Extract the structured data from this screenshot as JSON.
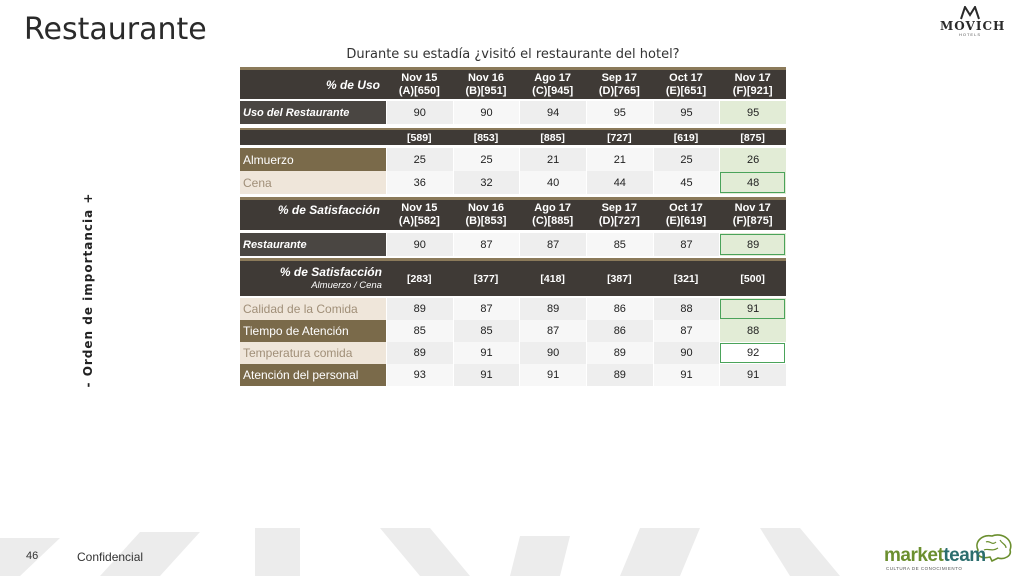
{
  "title": "Restaurante",
  "logo": {
    "brand": "MOVICH",
    "sub": "HOTELS"
  },
  "question": "Durante su estadía ¿visitó el restaurante del hotel?",
  "side_label": "-   Orden de importancia   +",
  "usage": {
    "header_label": "% de Uso",
    "columns": [
      {
        "l1": "Nov 15",
        "l2": "(A)[650]"
      },
      {
        "l1": "Nov 16",
        "l2": "(B)[951]"
      },
      {
        "l1": "Ago 17",
        "l2": "(C)[945]"
      },
      {
        "l1": "Sep 17",
        "l2": "(D)[765]"
      },
      {
        "l1": "Oct 17",
        "l2": "(E)[651]"
      },
      {
        "l1": "Nov 17",
        "l2": "(F)[921]"
      }
    ],
    "row_label": "Uso del Restaurante",
    "row_values": [
      "90",
      "90",
      "94",
      "95",
      "95",
      "95"
    ],
    "bases": [
      "[589]",
      "[853]",
      "[885]",
      "[727]",
      "[619]",
      "[875]"
    ],
    "meals": [
      {
        "label": "Almuerzo",
        "values": [
          "25",
          "25",
          "21",
          "21",
          "25",
          "26"
        ]
      },
      {
        "label": "Cena",
        "values": [
          "36",
          "32",
          "40",
          "44",
          "45",
          "48"
        ]
      }
    ]
  },
  "satisfaction": {
    "header_label": "% de Satisfacción",
    "columns": [
      {
        "l1": "Nov 15",
        "l2": "(A)[582]"
      },
      {
        "l1": "Nov 16",
        "l2": "(B)[853]"
      },
      {
        "l1": "Ago 17",
        "l2": "(C)[885]"
      },
      {
        "l1": "Sep 17",
        "l2": "(D)[727]"
      },
      {
        "l1": "Oct 17",
        "l2": "(E)[619]"
      },
      {
        "l1": "Nov 17",
        "l2": "(F)[875]"
      }
    ],
    "row_label": "Restaurante",
    "row_values": [
      "90",
      "87",
      "87",
      "85",
      "87",
      "89"
    ]
  },
  "attributes": {
    "header_label": "% de Satisfacción",
    "header_sub": "Almuerzo / Cena",
    "bases": [
      "[283]",
      "[377]",
      "[418]",
      "[387]",
      "[321]",
      "[500]"
    ],
    "rows": [
      {
        "label": "Calidad de la Comida",
        "values": [
          "89",
          "87",
          "89",
          "86",
          "88",
          "91"
        ]
      },
      {
        "label": "Tiempo de Atención",
        "values": [
          "85",
          "85",
          "87",
          "86",
          "87",
          "88"
        ]
      },
      {
        "label": "Temperatura comida",
        "values": [
          "89",
          "91",
          "90",
          "89",
          "90",
          "92"
        ]
      },
      {
        "label": "Atención del personal",
        "values": [
          "93",
          "91",
          "91",
          "89",
          "91",
          "91"
        ]
      }
    ]
  },
  "footer": {
    "page_number": "46",
    "confidential": "Confidencial"
  },
  "marketteam": {
    "part1": "market",
    "part2": "team",
    "tagline": "CULTURA DE CONOCIMIENTO"
  },
  "colors": {
    "header_dark": "#3f3a36",
    "accent_brown": "#7a6a4a",
    "highlight_green": "#e2ecd6",
    "box_green": "#4aa35a"
  }
}
